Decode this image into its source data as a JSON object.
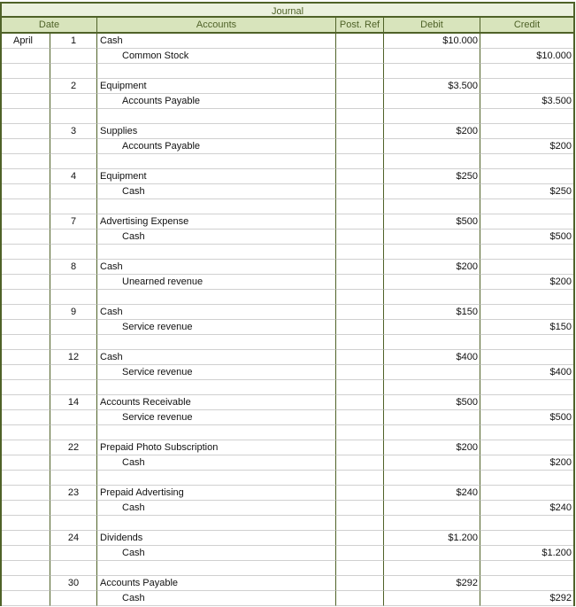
{
  "title": "Journal",
  "headers": {
    "date": "Date",
    "accounts": "Accounts",
    "post_ref": "Post. Ref",
    "debit": "Debit",
    "credit": "Credit"
  },
  "month": "April",
  "colors": {
    "border": "#4f6228",
    "header_bg": "#d8e4bc",
    "title_bg": "#ebf1de"
  },
  "entries": [
    {
      "day": "1",
      "debit_account": "Cash",
      "credit_account": "Common Stock",
      "debit": "$10.000",
      "credit": "$10.000"
    },
    {
      "day": "2",
      "debit_account": "Equipment",
      "credit_account": "Accounts Payable",
      "debit": "$3.500",
      "credit": "$3.500"
    },
    {
      "day": "3",
      "debit_account": "Supplies",
      "credit_account": "Accounts Payable",
      "debit": "$200",
      "credit": "$200"
    },
    {
      "day": "4",
      "debit_account": "Equipment",
      "credit_account": "Cash",
      "debit": "$250",
      "credit": "$250"
    },
    {
      "day": "7",
      "debit_account": "Advertising Expense",
      "credit_account": "Cash",
      "debit": "$500",
      "credit": "$500"
    },
    {
      "day": "8",
      "debit_account": "Cash",
      "credit_account": "Unearned revenue",
      "debit": "$200",
      "credit": "$200"
    },
    {
      "day": "9",
      "debit_account": "Cash",
      "credit_account": "Service revenue",
      "debit": "$150",
      "credit": "$150"
    },
    {
      "day": "12",
      "debit_account": "Cash",
      "credit_account": "Service revenue",
      "debit": "$400",
      "credit": "$400"
    },
    {
      "day": "14",
      "debit_account": "Accounts Receivable",
      "credit_account": "Service revenue",
      "debit": "$500",
      "credit": "$500"
    },
    {
      "day": "22",
      "debit_account": "Prepaid Photo Subscription",
      "credit_account": "Cash",
      "debit": "$200",
      "credit": "$200"
    },
    {
      "day": "23",
      "debit_account": "Prepaid Advertising",
      "credit_account": "Cash",
      "debit": "$240",
      "credit": "$240"
    },
    {
      "day": "24",
      "debit_account": "Dividends",
      "credit_account": "Cash",
      "debit": "$1.200",
      "credit": "$1.200"
    },
    {
      "day": "30",
      "debit_account": "Accounts Payable",
      "credit_account": "Cash",
      "debit": "$292",
      "credit": "$292"
    }
  ]
}
